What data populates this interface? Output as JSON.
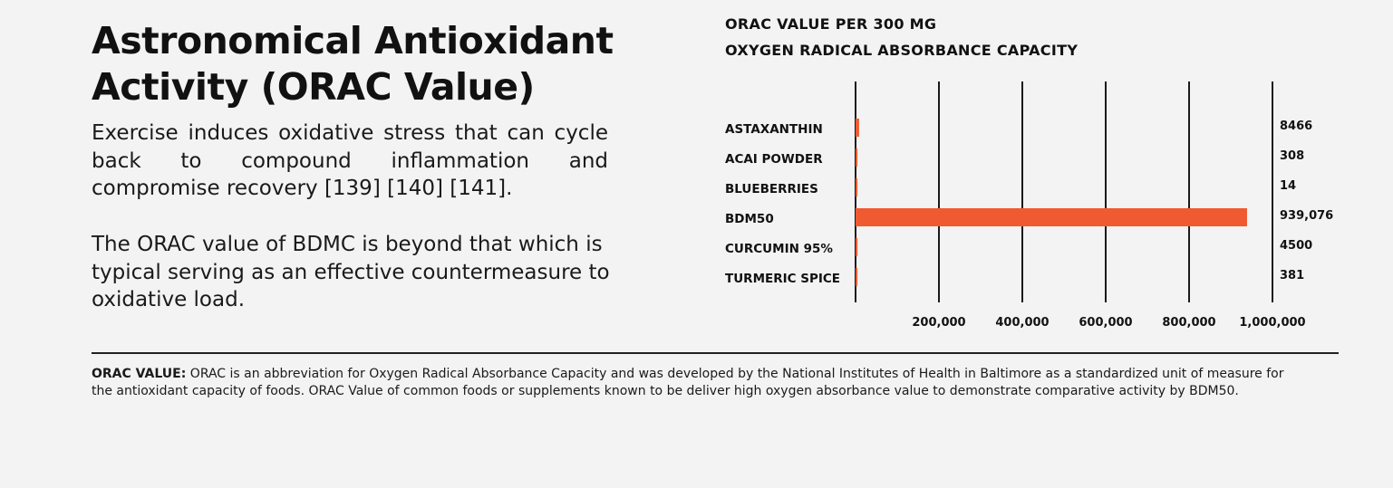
{
  "headline": "Astronomical Antioxidant Activity (ORAC Value)",
  "paragraphs": [
    "Exercise induces oxidative stress that can cycle back to compound inflammation and compromise recovery [139] [140] [141].",
    "The ORAC value of BDMC is beyond that which is typical serving as an effective countermeasure to oxidative load."
  ],
  "colors": {
    "bar": "#f05a30",
    "gridline": "#1a1a1a",
    "background": "#f3f3f3"
  },
  "chart_data": {
    "type": "bar",
    "orientation": "horizontal",
    "title": "ORAC VALUE PER 300 MG",
    "subtitle": "OXYGEN RADICAL ABSORBANCE CAPACITY",
    "categories": [
      "ASTAXANTHIN",
      "ACAI POWDER",
      "BLUEBERRIES",
      "BDM50",
      "CURCUMIN 95%",
      "TURMERIC SPICE"
    ],
    "values": [
      8466,
      308,
      14,
      939076,
      4500,
      381
    ],
    "value_labels": [
      "8466",
      "308",
      "14",
      "939,076",
      "4500",
      "381"
    ],
    "xlim": [
      0,
      1000000
    ],
    "xticks": [
      200000,
      400000,
      600000,
      800000,
      1000000
    ],
    "xtick_labels": [
      "200,000",
      "400,000",
      "600,000",
      "800,000",
      "1,000,000"
    ],
    "grid": "vertical",
    "legend": "none"
  },
  "footnote": {
    "label": "ORAC VALUE:",
    "text": " ORAC is an abbreviation for Oxygen Radical Absorbance Capacity and was developed by the National Institutes of Health in Baltimore as a standardized unit of measure for the antioxidant capacity of foods. ORAC Value of common foods or supplements known to be deliver high oxygen absorbance value to demonstrate comparative activity by BDM50."
  }
}
